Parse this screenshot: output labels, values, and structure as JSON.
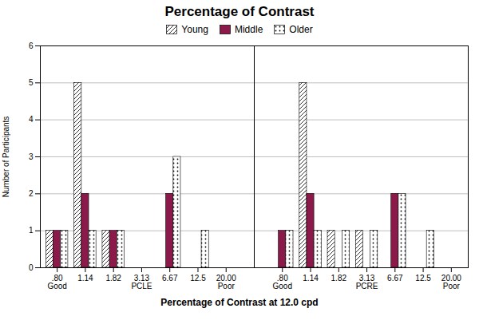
{
  "chart_data": {
    "type": "bar",
    "title": "Percentage of Contrast",
    "xlabel": "Percentage of Contrast at 12.0 cpd",
    "ylabel": "Number of Participants",
    "categories": [
      ".80\nGood",
      "1.14",
      "1.82",
      "3.13\nPCLE",
      "6.67",
      "12.5",
      "20.00\nPoor",
      ".80\nGood",
      "1.14",
      "1.82",
      "3.13\nPCRE",
      "6.67",
      "12.5",
      "20.00\nPoor"
    ],
    "series": [
      {
        "name": "Young",
        "color": "#ffffff",
        "values": [
          1,
          5,
          1,
          0,
          0,
          0,
          0,
          0,
          5,
          1,
          1,
          0,
          0,
          0
        ]
      },
      {
        "name": "Middle",
        "color": "#8B1A4A",
        "values": [
          1,
          2,
          1,
          0,
          2,
          0,
          0,
          1,
          2,
          0,
          0,
          2,
          0,
          0
        ]
      },
      {
        "name": "Older",
        "color": "#ffffff",
        "values": [
          1,
          1,
          1,
          0,
          3,
          1,
          0,
          1,
          1,
          1,
          1,
          2,
          1,
          0
        ]
      }
    ],
    "ylim": [
      0,
      6
    ],
    "yticks": [
      0,
      1,
      2,
      3,
      4,
      5,
      6
    ],
    "grid": true,
    "legend": "top"
  }
}
